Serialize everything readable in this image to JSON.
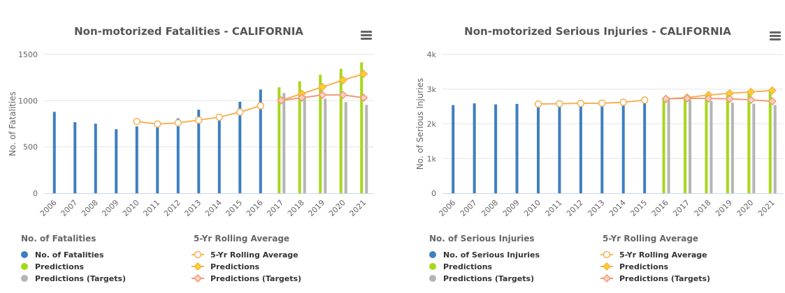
{
  "colors": {
    "fatalities": "#3d7fc1",
    "predictions": "#a6d81a",
    "targets": "#b5b5b5",
    "rolling": "#f5b155",
    "rolling_predictions_fill": "#ffd21f",
    "rolling_targets": "#ef9b77",
    "grid": "#e6e6e6"
  },
  "menu_icon": "hamburger-menu-icon",
  "chart_data": [
    {
      "type": "bar",
      "title": "Non-motorized Fatalities - CALIFORNIA",
      "ylabel": "No. of Fatalities",
      "ylim": [
        0,
        1500
      ],
      "yticks": [
        "0",
        "500",
        "1000",
        "1500"
      ],
      "ytick_values": [
        0,
        500,
        1000,
        1500
      ],
      "categories": [
        "2006",
        "2007",
        "2008",
        "2009",
        "2010",
        "2011",
        "2012",
        "2013",
        "2014",
        "2015",
        "2016",
        "2017",
        "2018",
        "2019",
        "2020",
        "2021"
      ],
      "grid": true,
      "legend_placement": "bottom",
      "legend_groups": [
        {
          "title": "No. of Fatalities",
          "items": [
            "No. of Fatalities",
            "Predictions",
            "Predictions (Targets)"
          ]
        },
        {
          "title": "5-Yr Rolling Average",
          "items": [
            "5-Yr Rolling Average",
            "Predictions",
            "Predictions (Targets)"
          ]
        }
      ],
      "bar_series": [
        {
          "key": "actual",
          "values": [
            880,
            768,
            752,
            692,
            722,
            771,
            808,
            903,
            858,
            988,
            1121,
            null,
            null,
            null,
            null,
            null
          ]
        },
        {
          "key": "predictions",
          "values": [
            null,
            null,
            null,
            null,
            null,
            null,
            null,
            null,
            null,
            null,
            null,
            1145,
            1210,
            1280,
            1345,
            1415
          ]
        },
        {
          "key": "targets",
          "values": [
            null,
            null,
            null,
            null,
            null,
            null,
            null,
            null,
            null,
            null,
            null,
            1082,
            1052,
            1022,
            985,
            955
          ]
        }
      ],
      "line_series": [
        {
          "key": "rolling",
          "marker": "circle",
          "values": [
            null,
            null,
            null,
            null,
            775,
            748,
            760,
            790,
            822,
            877,
            945,
            null,
            null,
            null,
            null,
            null
          ]
        },
        {
          "key": "rolling_predictions",
          "marker": "diamond",
          "values": [
            null,
            null,
            null,
            null,
            null,
            null,
            null,
            null,
            null,
            null,
            null,
            1003,
            1075,
            1148,
            1222,
            1290
          ]
        },
        {
          "key": "rolling_targets",
          "marker": "diamond",
          "values": [
            null,
            null,
            null,
            null,
            null,
            null,
            null,
            null,
            null,
            null,
            null,
            1003,
            1032,
            1062,
            1062,
            1032
          ]
        }
      ]
    },
    {
      "type": "bar",
      "title": "Non-motorized Serious Injuries - CALIFORNIA",
      "ylabel": "No. of Serious Injuries",
      "ylim": [
        0,
        4000
      ],
      "yticks": [
        "0",
        "1k",
        "2k",
        "3k",
        "4k"
      ],
      "ytick_values": [
        0,
        1000,
        2000,
        3000,
        4000
      ],
      "categories": [
        "2006",
        "2007",
        "2008",
        "2009",
        "2010",
        "2011",
        "2012",
        "2013",
        "2014",
        "2015",
        "2016",
        "2017",
        "2018",
        "2019",
        "2020",
        "2021"
      ],
      "grid": true,
      "legend_placement": "bottom",
      "legend_groups": [
        {
          "title": "No. of Serious Injuries",
          "items": [
            "No. of Serious Injuries",
            "Predictions",
            "Predictions (Targets)"
          ]
        },
        {
          "title": "5-Yr Rolling Average",
          "items": [
            "5-Yr Rolling Average",
            "Predictions",
            "Predictions (Targets)"
          ]
        }
      ],
      "bar_series": [
        {
          "key": "actual",
          "values": [
            2540,
            2590,
            2560,
            2575,
            2480,
            2590,
            2670,
            2620,
            2700,
            2770,
            null,
            null,
            null,
            null,
            null,
            null
          ]
        },
        {
          "key": "predictions",
          "values": [
            null,
            null,
            null,
            null,
            null,
            null,
            null,
            null,
            null,
            null,
            2720,
            2790,
            2860,
            2920,
            2960,
            2990
          ]
        },
        {
          "key": "targets",
          "values": [
            null,
            null,
            null,
            null,
            null,
            null,
            null,
            null,
            null,
            null,
            2700,
            2700,
            2660,
            2610,
            2580,
            2540
          ]
        }
      ],
      "line_series": [
        {
          "key": "rolling",
          "marker": "circle",
          "values": [
            null,
            null,
            null,
            null,
            2570,
            2580,
            2590,
            2595,
            2620,
            2685,
            null,
            null,
            null,
            null,
            null,
            null
          ]
        },
        {
          "key": "rolling_predictions",
          "marker": "diamond",
          "values": [
            null,
            null,
            null,
            null,
            null,
            null,
            null,
            null,
            null,
            null,
            2720,
            2760,
            2830,
            2880,
            2920,
            2960
          ]
        },
        {
          "key": "rolling_targets",
          "marker": "diamond",
          "values": [
            null,
            null,
            null,
            null,
            null,
            null,
            null,
            null,
            null,
            null,
            2720,
            2735,
            2730,
            2720,
            2690,
            2650
          ]
        }
      ]
    }
  ]
}
